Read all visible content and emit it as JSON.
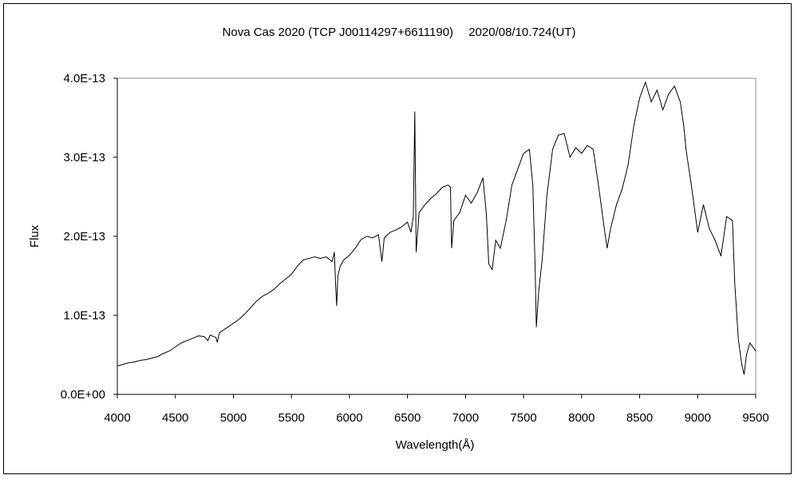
{
  "chart_data": {
    "type": "line",
    "title": "Nova Cas 2020 (TCP J00114297+6611190)　 2020/08/10.724(UT)",
    "xlabel": "Wavelength(Å)",
    "ylabel": "Flux",
    "xlim": [
      4000,
      9500
    ],
    "ylim": [
      0,
      4e-13
    ],
    "x_ticks": [
      "4000",
      "4500",
      "5000",
      "5500",
      "6000",
      "6500",
      "7000",
      "7500",
      "8000",
      "8500",
      "9000",
      "9500"
    ],
    "y_ticks": [
      "0.0E+00",
      "1.0E-13",
      "2.0E-13",
      "3.0E-13",
      "4.0E-13"
    ],
    "grid": false,
    "legend": "none",
    "series": [
      {
        "color": "#000000",
        "points": [
          [
            4000,
            3.6e-14
          ],
          [
            4050,
            3.8e-14
          ],
          [
            4100,
            4e-14
          ],
          [
            4150,
            4.1e-14
          ],
          [
            4200,
            4.3e-14
          ],
          [
            4250,
            4.4e-14
          ],
          [
            4300,
            4.6e-14
          ],
          [
            4350,
            4.8e-14
          ],
          [
            4400,
            5.2e-14
          ],
          [
            4450,
            5.5e-14
          ],
          [
            4500,
            6e-14
          ],
          [
            4550,
            6.5e-14
          ],
          [
            4600,
            6.8e-14
          ],
          [
            4650,
            7.1e-14
          ],
          [
            4700,
            7.4e-14
          ],
          [
            4750,
            7.3e-14
          ],
          [
            4780,
            6.8e-14
          ],
          [
            4800,
            7.5e-14
          ],
          [
            4850,
            7.2e-14
          ],
          [
            4861,
            6.6e-14
          ],
          [
            4880,
            7.8e-14
          ],
          [
            4950,
            8.5e-14
          ],
          [
            5000,
            9e-14
          ],
          [
            5050,
            9.5e-14
          ],
          [
            5100,
            1.02e-13
          ],
          [
            5150,
            1.1e-13
          ],
          [
            5200,
            1.18e-13
          ],
          [
            5250,
            1.24e-13
          ],
          [
            5300,
            1.28e-13
          ],
          [
            5350,
            1.33e-13
          ],
          [
            5400,
            1.4e-13
          ],
          [
            5450,
            1.46e-13
          ],
          [
            5500,
            1.52e-13
          ],
          [
            5550,
            1.62e-13
          ],
          [
            5600,
            1.7e-13
          ],
          [
            5650,
            1.72e-13
          ],
          [
            5700,
            1.74e-13
          ],
          [
            5750,
            1.72e-13
          ],
          [
            5800,
            1.74e-13
          ],
          [
            5850,
            1.68e-13
          ],
          [
            5870,
            1.8e-13
          ],
          [
            5880,
            1.4e-13
          ],
          [
            5890,
            1.12e-13
          ],
          [
            5900,
            1.5e-13
          ],
          [
            5920,
            1.62e-13
          ],
          [
            5950,
            1.7e-13
          ],
          [
            6000,
            1.76e-13
          ],
          [
            6050,
            1.85e-13
          ],
          [
            6100,
            1.96e-13
          ],
          [
            6150,
            2e-13
          ],
          [
            6200,
            1.98e-13
          ],
          [
            6250,
            2.02e-13
          ],
          [
            6280,
            1.68e-13
          ],
          [
            6300,
            1.98e-13
          ],
          [
            6350,
            2.05e-13
          ],
          [
            6400,
            2.08e-13
          ],
          [
            6450,
            2.12e-13
          ],
          [
            6500,
            2.18e-13
          ],
          [
            6530,
            2.05e-13
          ],
          [
            6550,
            2.25e-13
          ],
          [
            6563,
            3.58e-13
          ],
          [
            6575,
            1.8e-13
          ],
          [
            6600,
            2.3e-13
          ],
          [
            6650,
            2.4e-13
          ],
          [
            6700,
            2.48e-13
          ],
          [
            6750,
            2.54e-13
          ],
          [
            6800,
            2.62e-13
          ],
          [
            6850,
            2.65e-13
          ],
          [
            6870,
            2.62e-13
          ],
          [
            6880,
            1.85e-13
          ],
          [
            6900,
            2.2e-13
          ],
          [
            6950,
            2.3e-13
          ],
          [
            7000,
            2.52e-13
          ],
          [
            7050,
            2.42e-13
          ],
          [
            7100,
            2.55e-13
          ],
          [
            7150,
            2.74e-13
          ],
          [
            7180,
            2.28e-13
          ],
          [
            7200,
            1.65e-13
          ],
          [
            7230,
            1.58e-13
          ],
          [
            7260,
            1.95e-13
          ],
          [
            7300,
            1.85e-13
          ],
          [
            7350,
            2.2e-13
          ],
          [
            7400,
            2.65e-13
          ],
          [
            7450,
            2.85e-13
          ],
          [
            7500,
            3.05e-13
          ],
          [
            7550,
            3.1e-13
          ],
          [
            7580,
            2.65e-13
          ],
          [
            7600,
            1.6e-13
          ],
          [
            7610,
            8.5e-14
          ],
          [
            7630,
            1.3e-13
          ],
          [
            7660,
            1.7e-13
          ],
          [
            7700,
            2.5e-13
          ],
          [
            7750,
            3.1e-13
          ],
          [
            7800,
            3.28e-13
          ],
          [
            7850,
            3.3e-13
          ],
          [
            7900,
            3e-13
          ],
          [
            7950,
            3.12e-13
          ],
          [
            8000,
            3.05e-13
          ],
          [
            8050,
            3.15e-13
          ],
          [
            8100,
            3.1e-13
          ],
          [
            8150,
            2.6e-13
          ],
          [
            8200,
            2.05e-13
          ],
          [
            8220,
            1.85e-13
          ],
          [
            8250,
            2.1e-13
          ],
          [
            8300,
            2.4e-13
          ],
          [
            8350,
            2.6e-13
          ],
          [
            8400,
            2.9e-13
          ],
          [
            8450,
            3.4e-13
          ],
          [
            8500,
            3.75e-13
          ],
          [
            8550,
            3.95e-13
          ],
          [
            8600,
            3.7e-13
          ],
          [
            8650,
            3.85e-13
          ],
          [
            8700,
            3.6e-13
          ],
          [
            8750,
            3.8e-13
          ],
          [
            8800,
            3.9e-13
          ],
          [
            8850,
            3.7e-13
          ],
          [
            8880,
            3.4e-13
          ],
          [
            8900,
            3.1e-13
          ],
          [
            8950,
            2.6e-13
          ],
          [
            9000,
            2.05e-13
          ],
          [
            9050,
            2.4e-13
          ],
          [
            9100,
            2.1e-13
          ],
          [
            9150,
            1.95e-13
          ],
          [
            9200,
            1.75e-13
          ],
          [
            9250,
            2.25e-13
          ],
          [
            9300,
            2.2e-13
          ],
          [
            9320,
            1.4e-13
          ],
          [
            9350,
            7e-14
          ],
          [
            9380,
            3.8e-14
          ],
          [
            9400,
            2.5e-14
          ],
          [
            9420,
            5e-14
          ],
          [
            9450,
            6.5e-14
          ],
          [
            9500,
            5.5e-14
          ]
        ]
      }
    ]
  }
}
